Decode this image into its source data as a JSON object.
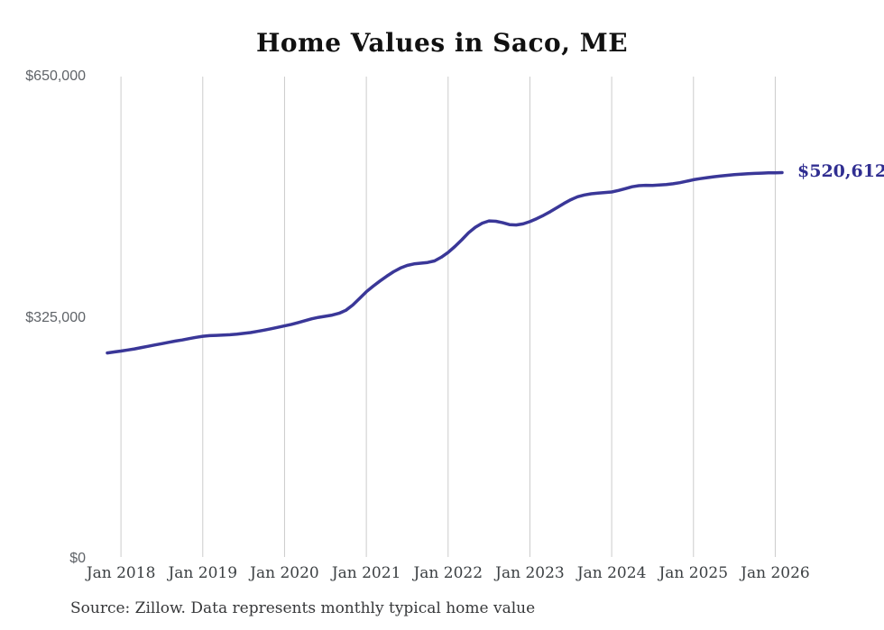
{
  "title": "Home Values in Saco, ME",
  "end_label": "$520,612",
  "source": "Source: Zillow. Data represents monthly typical home value",
  "colors": {
    "line": "#3a3798",
    "end_label": "#302e91",
    "grid": "#cccccc",
    "title": "#111111",
    "y_tick_text": "#5f6368",
    "x_tick_text": "#3c4043",
    "source_text": "#37383a",
    "background": "#ffffff"
  },
  "chart_data": {
    "type": "line",
    "title": "Home Values in Saco, ME",
    "xlabel": "",
    "ylabel": "",
    "ylim": [
      0,
      650000
    ],
    "grid": "vertical-only",
    "legend": "none",
    "last_value": 520612,
    "last_value_label": "$520,612",
    "y_ticks": [
      {
        "label": "$650,000",
        "value": 650000
      },
      {
        "label": "$325,000",
        "value": 325000
      },
      {
        "label": "$0",
        "value": 0
      }
    ],
    "x_ticks": [
      "Jan 2018",
      "Jan 2019",
      "Jan 2020",
      "Jan 2021",
      "Jan 2022",
      "Jan 2023",
      "Jan 2024",
      "Jan 2025",
      "Jan 2026"
    ],
    "x": [
      "Nov 2017",
      "Dec 2017",
      "Jan 2018",
      "Feb 2018",
      "Mar 2018",
      "Apr 2018",
      "May 2018",
      "Jun 2018",
      "Jul 2018",
      "Aug 2018",
      "Sep 2018",
      "Oct 2018",
      "Nov 2018",
      "Dec 2018",
      "Jan 2019",
      "Feb 2019",
      "Mar 2019",
      "Apr 2019",
      "May 2019",
      "Jun 2019",
      "Jul 2019",
      "Aug 2019",
      "Sep 2019",
      "Oct 2019",
      "Nov 2019",
      "Dec 2019",
      "Jan 2020",
      "Feb 2020",
      "Mar 2020",
      "Apr 2020",
      "May 2020",
      "Jun 2020",
      "Jul 2020",
      "Aug 2020",
      "Sep 2020",
      "Oct 2020",
      "Nov 2020",
      "Dec 2020",
      "Jan 2021",
      "Feb 2021",
      "Mar 2021",
      "Apr 2021",
      "May 2021",
      "Jun 2021",
      "Jul 2021",
      "Aug 2021",
      "Sep 2021",
      "Oct 2021",
      "Nov 2021",
      "Dec 2021",
      "Jan 2022",
      "Feb 2022",
      "Mar 2022",
      "Apr 2022",
      "May 2022",
      "Jun 2022",
      "Jul 2022",
      "Aug 2022",
      "Sep 2022",
      "Oct 2022",
      "Nov 2022",
      "Dec 2022",
      "Jan 2023",
      "Feb 2023",
      "Mar 2023",
      "Apr 2023",
      "May 2023",
      "Jun 2023",
      "Jul 2023",
      "Aug 2023",
      "Sep 2023",
      "Oct 2023",
      "Nov 2023",
      "Dec 2023",
      "Jan 2024",
      "Feb 2024",
      "Mar 2024",
      "Apr 2024",
      "May 2024",
      "Jun 2024",
      "Jul 2024",
      "Aug 2024",
      "Sep 2024",
      "Oct 2024",
      "Nov 2024",
      "Dec 2024",
      "Jan 2025",
      "Feb 2025",
      "Mar 2025",
      "Apr 2025",
      "May 2025",
      "Jun 2025",
      "Jul 2025",
      "Aug 2025",
      "Sep 2025",
      "Oct 2025",
      "Nov 2025",
      "Dec 2025",
      "Jan 2026",
      "Feb 2026"
    ],
    "values": [
      277500,
      278800,
      280000,
      281500,
      283000,
      284800,
      286500,
      288300,
      290000,
      291800,
      293500,
      295000,
      296800,
      298500,
      300000,
      300800,
      301200,
      301500,
      302000,
      302800,
      303800,
      305000,
      306500,
      308200,
      310000,
      312000,
      314000,
      316000,
      318500,
      321000,
      323500,
      325500,
      327000,
      328500,
      331000,
      335000,
      342000,
      351000,
      360000,
      367500,
      374500,
      381000,
      387000,
      392000,
      395500,
      397500,
      398500,
      399500,
      401500,
      406500,
      413000,
      421000,
      430000,
      439500,
      447000,
      452500,
      455500,
      455000,
      453000,
      450500,
      450000,
      451500,
      454500,
      458500,
      463000,
      468000,
      473500,
      479000,
      484000,
      488000,
      490500,
      492000,
      493000,
      493800,
      494500,
      496500,
      499000,
      501500,
      503000,
      503500,
      503200,
      503800,
      504500,
      505500,
      507000,
      509000,
      511000,
      512500,
      513800,
      515000,
      516000,
      517000,
      517800,
      518500,
      519000,
      519500,
      519900,
      520200,
      520400,
      520612
    ]
  }
}
